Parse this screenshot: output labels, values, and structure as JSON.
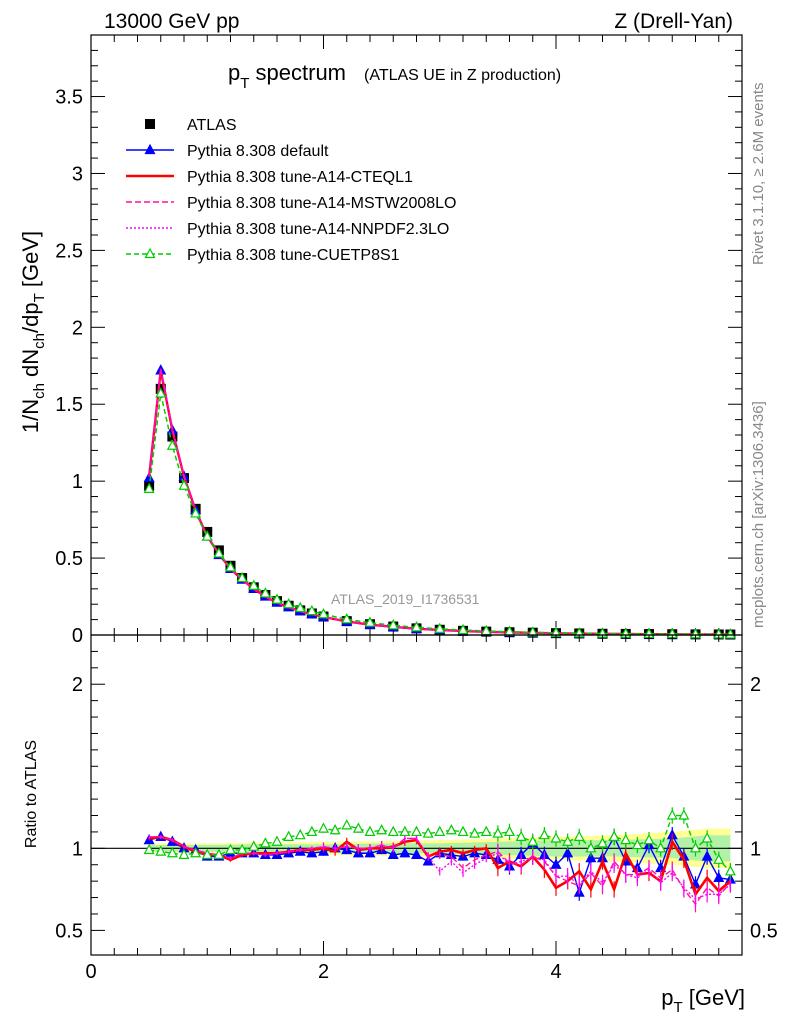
{
  "header": {
    "left": "13000 GeV pp",
    "right": "Z (Drell-Yan)"
  },
  "plot_title": {
    "main": "p",
    "main_sub": "T",
    "main_rest": " spectrum",
    "small": "(ATLAS UE in Z production)"
  },
  "side_labels": {
    "rivet": "Rivet 3.1.10, ≥ 2.6M events",
    "mcplots": "mcplots.cern.ch [arXiv:1306.3436]"
  },
  "watermark": "ATLAS_2019_I1736531",
  "axes": {
    "ylabel_main": "1/N_ch dN_ch/dp_T [GeV]",
    "ylabel_ratio": "Ratio to ATLAS",
    "xlabel": "p_T [GeV]",
    "x_ticks": [
      "0",
      "2",
      "4"
    ],
    "y_ticks_main": [
      "0",
      "0.5",
      "1",
      "1.5",
      "2",
      "2.5",
      "3",
      "3.5"
    ],
    "y_ticks_ratio": [
      "0.5",
      "1",
      "2"
    ]
  },
  "legend": [
    {
      "label": "ATLAS",
      "color": "#000000",
      "marker": "square",
      "dash": ""
    },
    {
      "label": "Pythia 8.308 default",
      "color": "#0000ff",
      "marker": "triangle",
      "dash": ""
    },
    {
      "label": "Pythia 8.308 tune-A14-CTEQL1",
      "color": "#ff0000",
      "marker": "none",
      "dash": ""
    },
    {
      "label": "Pythia 8.308 tune-A14-MSTW2008LO",
      "color": "#ff1493",
      "marker": "none",
      "dash": "6,3"
    },
    {
      "label": "Pythia 8.308 tune-A14-NNPDF2.3LO",
      "color": "#ff00ff",
      "marker": "none",
      "dash": "2,2"
    },
    {
      "label": "Pythia 8.308 tune-CUETP8S1",
      "color": "#00cc00",
      "marker": "open-triangle",
      "dash": "5,3"
    }
  ],
  "chart_data": [
    {
      "type": "scatter",
      "title": "p_T spectrum (ATLAS UE in Z production)",
      "xlabel": "p_T [GeV]",
      "ylabel": "1/N_ch dN_ch/dp_T [GeV]",
      "xlim": [
        0,
        5.6
      ],
      "ylim": [
        0,
        3.9
      ],
      "x": [
        0.5,
        0.6,
        0.7,
        0.8,
        0.9,
        1.0,
        1.1,
        1.2,
        1.3,
        1.4,
        1.5,
        1.6,
        1.7,
        1.8,
        1.9,
        2.0,
        2.2,
        2.4,
        2.6,
        2.8,
        3.0,
        3.2,
        3.4,
        3.6,
        3.8,
        4.0,
        4.2,
        4.4,
        4.6,
        4.8,
        5.0,
        5.2,
        5.4,
        5.5
      ],
      "series": [
        {
          "name": "ATLAS",
          "values": [
            0.97,
            1.6,
            1.29,
            1.02,
            0.82,
            0.67,
            0.55,
            0.45,
            0.37,
            0.31,
            0.26,
            0.22,
            0.19,
            0.16,
            0.14,
            0.12,
            0.09,
            0.07,
            0.055,
            0.043,
            0.034,
            0.027,
            0.022,
            0.018,
            0.015,
            0.012,
            0.01,
            0.008,
            0.007,
            0.006,
            0.005,
            0.004,
            0.0035,
            0.003
          ]
        },
        {
          "name": "Pythia 8.308 default",
          "values": [
            1.02,
            1.72,
            1.33,
            1.03,
            0.81,
            0.64,
            0.52,
            0.43,
            0.36,
            0.3,
            0.25,
            0.21,
            0.18,
            0.155,
            0.135,
            0.116,
            0.087,
            0.066,
            0.052,
            0.04,
            0.032,
            0.026,
            0.021,
            0.017,
            0.014,
            0.011,
            0.009,
            0.0075,
            0.0065,
            0.0055,
            0.0046,
            0.0038,
            0.0032,
            0.0028
          ]
        },
        {
          "name": "Pythia 8.308 tune-A14-CTEQL1",
          "values": [
            1.03,
            1.72,
            1.33,
            1.03,
            0.81,
            0.64,
            0.53,
            0.43,
            0.36,
            0.3,
            0.25,
            0.21,
            0.18,
            0.155,
            0.135,
            0.117,
            0.088,
            0.067,
            0.053,
            0.041,
            0.033,
            0.026,
            0.021,
            0.017,
            0.014,
            0.011,
            0.009,
            0.0075,
            0.0065,
            0.0055,
            0.0046,
            0.0038,
            0.0032,
            0.0028
          ]
        },
        {
          "name": "Pythia 8.308 tune-A14-MSTW2008LO",
          "values": [
            1.03,
            1.73,
            1.34,
            1.03,
            0.81,
            0.64,
            0.53,
            0.43,
            0.36,
            0.3,
            0.25,
            0.21,
            0.18,
            0.155,
            0.135,
            0.117,
            0.088,
            0.067,
            0.053,
            0.041,
            0.033,
            0.026,
            0.021,
            0.017,
            0.014,
            0.011,
            0.009,
            0.0075,
            0.0065,
            0.0055,
            0.0046,
            0.0038,
            0.0032,
            0.0028
          ]
        },
        {
          "name": "Pythia 8.308 tune-A14-NNPDF2.3LO",
          "values": [
            1.03,
            1.73,
            1.34,
            1.03,
            0.81,
            0.64,
            0.53,
            0.43,
            0.36,
            0.3,
            0.25,
            0.21,
            0.18,
            0.155,
            0.135,
            0.117,
            0.088,
            0.067,
            0.053,
            0.041,
            0.033,
            0.026,
            0.021,
            0.017,
            0.014,
            0.011,
            0.009,
            0.0075,
            0.0065,
            0.0055,
            0.0046,
            0.0038,
            0.0032,
            0.0028
          ]
        },
        {
          "name": "Pythia 8.308 tune-CUETP8S1",
          "values": [
            0.95,
            1.57,
            1.23,
            0.97,
            0.79,
            0.64,
            0.53,
            0.44,
            0.37,
            0.32,
            0.27,
            0.23,
            0.2,
            0.175,
            0.155,
            0.135,
            0.102,
            0.08,
            0.063,
            0.05,
            0.04,
            0.032,
            0.026,
            0.021,
            0.017,
            0.014,
            0.011,
            0.009,
            0.008,
            0.007,
            0.006,
            0.005,
            0.004,
            0.0035
          ]
        }
      ]
    },
    {
      "type": "line",
      "title": "",
      "xlabel": "p_T [GeV]",
      "ylabel": "Ratio to ATLAS",
      "xlim": [
        0,
        5.6
      ],
      "ylim": [
        0.35,
        2.3
      ],
      "reference": 1,
      "x": [
        0.5,
        0.6,
        0.7,
        0.8,
        0.9,
        1.0,
        1.1,
        1.2,
        1.3,
        1.4,
        1.5,
        1.6,
        1.7,
        1.8,
        1.9,
        2.0,
        2.1,
        2.2,
        2.3,
        2.4,
        2.5,
        2.6,
        2.7,
        2.8,
        2.9,
        3.0,
        3.1,
        3.2,
        3.3,
        3.4,
        3.5,
        3.6,
        3.7,
        3.8,
        3.9,
        4.0,
        4.1,
        4.2,
        4.3,
        4.4,
        4.5,
        4.6,
        4.7,
        4.8,
        4.9,
        5.0,
        5.1,
        5.2,
        5.3,
        5.4,
        5.5
      ],
      "series": [
        {
          "name": "Pythia 8.308 default",
          "values": [
            1.05,
            1.07,
            1.04,
            1.0,
            0.99,
            0.95,
            0.95,
            0.97,
            0.97,
            0.97,
            0.96,
            0.96,
            0.97,
            0.98,
            0.97,
            0.98,
            1.0,
            0.99,
            0.97,
            0.97,
            0.99,
            0.96,
            0.97,
            0.96,
            0.92,
            0.97,
            0.96,
            0.95,
            0.97,
            0.96,
            0.93,
            0.89,
            0.96,
            1.03,
            0.96,
            0.9,
            0.97,
            0.73,
            0.94,
            0.94,
            1.07,
            0.92,
            0.88,
            1.02,
            0.88,
            1.08,
            0.95,
            0.78,
            0.95,
            0.82,
            0.81
          ]
        },
        {
          "name": "Pythia 8.308 tune-A14-CTEQL1",
          "values": [
            1.06,
            1.07,
            1.05,
            1.01,
            0.98,
            0.96,
            0.96,
            0.93,
            0.96,
            0.97,
            0.97,
            0.97,
            0.98,
            0.99,
            0.99,
            1.0,
            0.98,
            1.04,
            0.99,
            1.0,
            1.0,
            1.01,
            1.04,
            1.05,
            0.95,
            0.98,
            0.99,
            0.97,
            0.99,
            1.0,
            0.88,
            0.92,
            0.89,
            0.95,
            0.87,
            0.76,
            0.8,
            0.86,
            0.75,
            0.92,
            0.75,
            0.97,
            0.84,
            0.85,
            0.8,
            1.04,
            0.93,
            0.72,
            0.82,
            0.74,
            0.8
          ]
        },
        {
          "name": "Pythia 8.308 tune-A14-MSTW2008LO",
          "values": [
            1.07,
            1.07,
            1.05,
            1.01,
            0.99,
            0.97,
            0.96,
            0.94,
            0.97,
            0.97,
            0.96,
            0.97,
            0.98,
            0.99,
            1.0,
            1.01,
            1.0,
            1.01,
            1.0,
            1.0,
            1.02,
            1.0,
            1.06,
            1.06,
            0.95,
            0.96,
            0.95,
            0.88,
            0.93,
            0.96,
            0.98,
            0.91,
            0.9,
            0.95,
            0.92,
            0.83,
            0.8,
            0.77,
            0.85,
            0.77,
            0.92,
            0.84,
            0.84,
            0.88,
            0.82,
            0.87,
            0.75,
            0.66,
            0.76,
            0.71,
            0.79
          ]
        },
        {
          "name": "Pythia 8.308 tune-A14-NNPDF2.3LO",
          "values": [
            1.07,
            1.07,
            1.05,
            1.01,
            0.99,
            0.97,
            0.96,
            0.94,
            0.97,
            0.97,
            0.96,
            0.97,
            0.98,
            0.99,
            1.0,
            1.01,
            1.0,
            1.01,
            1.0,
            1.0,
            1.02,
            1.0,
            1.06,
            1.06,
            0.95,
            0.86,
            0.92,
            0.85,
            0.9,
            0.94,
            0.97,
            0.9,
            0.92,
            0.95,
            0.93,
            0.83,
            0.83,
            0.78,
            0.86,
            0.79,
            0.9,
            0.84,
            0.82,
            0.87,
            0.79,
            0.85,
            0.76,
            0.69,
            0.72,
            0.72,
            0.78
          ]
        },
        {
          "name": "Pythia 8.308 tune-CUETP8S1",
          "values": [
            0.99,
            0.98,
            0.97,
            0.96,
            0.97,
            0.96,
            0.96,
            0.99,
            0.99,
            1.01,
            1.03,
            1.04,
            1.07,
            1.08,
            1.1,
            1.12,
            1.11,
            1.14,
            1.12,
            1.1,
            1.11,
            1.1,
            1.1,
            1.1,
            1.09,
            1.1,
            1.11,
            1.1,
            1.09,
            1.1,
            1.09,
            1.1,
            1.07,
            1.04,
            1.08,
            1.06,
            1.04,
            1.07,
            1.0,
            1.03,
            1.07,
            1.05,
            1.02,
            1.05,
            1.0,
            1.2,
            1.2,
            1.0,
            1.06,
            0.93,
            0.86
          ]
        }
      ],
      "uncertainty_band": {
        "x": [
          0.5,
          1.0,
          1.5,
          2.0,
          2.5,
          3.0,
          3.5,
          4.0,
          4.5,
          5.0,
          5.3,
          5.5
        ],
        "inner": [
          0.02,
          0.02,
          0.025,
          0.025,
          0.03,
          0.03,
          0.04,
          0.05,
          0.05,
          0.06,
          0.08,
          0.08
        ],
        "outer": [
          0.03,
          0.03,
          0.035,
          0.04,
          0.045,
          0.05,
          0.06,
          0.07,
          0.08,
          0.1,
          0.12,
          0.12
        ]
      }
    }
  ]
}
